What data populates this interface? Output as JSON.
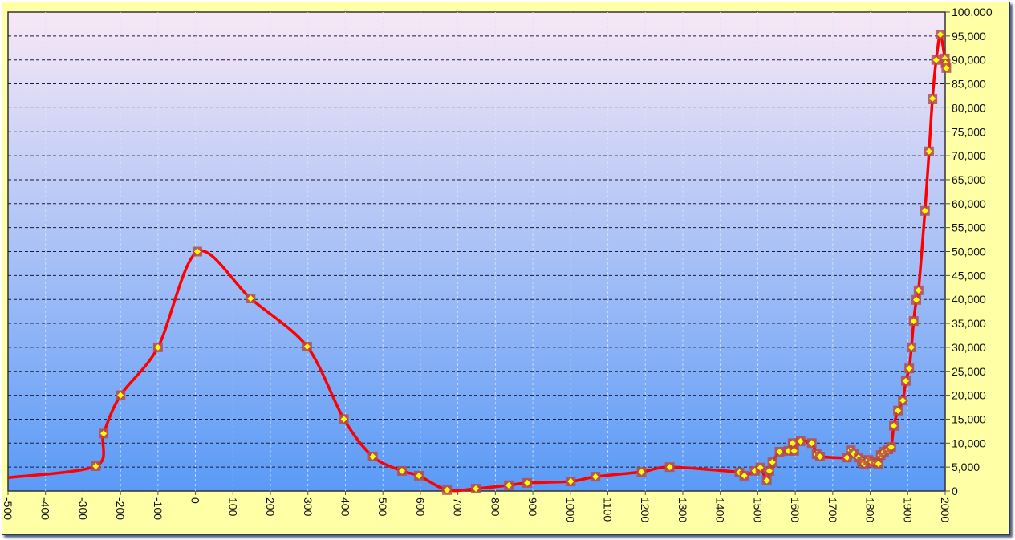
{
  "chart_data": {
    "type": "line",
    "title": "",
    "xlabel": "",
    "ylabel": "",
    "xlim": [
      -500,
      2000
    ],
    "ylim": [
      0,
      100000
    ],
    "x_ticks": [
      "-500",
      "-400",
      "-300",
      "-200",
      "-100",
      "0",
      "100",
      "200",
      "300",
      "400",
      "500",
      "600",
      "700",
      "800",
      "900",
      "1000",
      "1100",
      "1200",
      "1300",
      "1400",
      "1500",
      "1600",
      "1700",
      "1800",
      "1900",
      "2000"
    ],
    "y_ticks": [
      "0",
      "5,000",
      "10,000",
      "15,000",
      "20,000",
      "25,000",
      "30,000",
      "35,000",
      "40,000",
      "45,000",
      "50,000",
      "55,000",
      "60,000",
      "65,000",
      "70,000",
      "75,000",
      "80,000",
      "85,000",
      "90,000",
      "95,000",
      "100,000"
    ],
    "y_axis_side": "right",
    "grid": true,
    "legend": "none",
    "colors": {
      "line": "#FF0000",
      "marker_box": "#B84A4A",
      "marker": "#FFFF00",
      "bg_top": "#F8E8F6",
      "bg_bottom": "#5A9AF6",
      "frame": "#FFFFA6"
    },
    "series": [
      {
        "x": [
          -500,
          -266,
          -245,
          -200,
          -100,
          5,
          147,
          298,
          396,
          473,
          551,
          596,
          671,
          748,
          836,
          885,
          1001,
          1067,
          1190,
          1265,
          1451,
          1464,
          1492,
          1507,
          1524,
          1531,
          1539,
          1558,
          1582,
          1593,
          1597,
          1614,
          1644,
          1657,
          1666,
          1738,
          1748,
          1756,
          1769,
          1778,
          1784,
          1795,
          1805,
          1816,
          1822,
          1828,
          1837,
          1848,
          1856,
          1863,
          1874,
          1887,
          1895,
          1904,
          1910,
          1916,
          1923,
          1929,
          1946,
          1957,
          1966,
          1976,
          1987,
          1999,
          2001,
          2003
        ],
        "y": [
          2800,
          5200,
          12000,
          20000,
          30000,
          50000,
          40200,
          30150,
          15000,
          7200,
          4200,
          3200,
          200,
          500,
          1200,
          1700,
          2000,
          3000,
          4000,
          5000,
          3900,
          3200,
          4200,
          4900,
          2200,
          4200,
          6000,
          8200,
          8400,
          10000,
          8400,
          10400,
          10000,
          7700,
          7200,
          7000,
          8500,
          7800,
          7000,
          6200,
          5700,
          6500,
          6000,
          5900,
          5700,
          7500,
          8200,
          8700,
          9200,
          13600,
          16800,
          18900,
          23000,
          25600,
          30000,
          35500,
          39900,
          41900,
          58500,
          70900,
          81900,
          90000,
          95300,
          90300,
          89300,
          88300
        ],
        "markers_from_index": 1
      }
    ]
  }
}
